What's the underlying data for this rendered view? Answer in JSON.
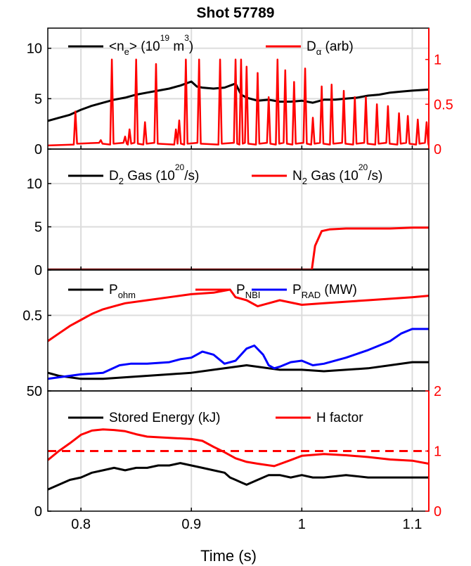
{
  "figure": {
    "title": "Shot 57789",
    "xlabel": "Time (s)"
  },
  "colors": {
    "black": "#000000",
    "red": "#ff0000",
    "blue": "#0000ff",
    "grid": "#dcdcdc"
  },
  "chart_data": [
    {
      "type": "line",
      "panel": 1,
      "x_range": [
        0.77,
        1.115
      ],
      "x_ticks": [
        0.8,
        0.9,
        1.0,
        1.1
      ],
      "ylim": [
        0,
        12
      ],
      "y_ticks": [
        0,
        5,
        10
      ],
      "y_tick_labels": [
        "0",
        "5",
        "10"
      ],
      "y2lim": [
        0,
        1.35
      ],
      "y2_ticks": [
        0,
        0.5,
        1
      ],
      "y2_tick_labels": [
        "0",
        "0.5",
        "1"
      ],
      "legend": {
        "ne": {
          "main": "<n",
          "sub": "e",
          "mid": "> (10",
          "sup": "19",
          "tail": " m",
          "sup2": "3",
          "end": ")"
        },
        "da": {
          "main": "D",
          "sub": "α",
          "tail": " (arb)"
        }
      },
      "series": [
        {
          "key": "ne",
          "axis": "left",
          "color": "#000000",
          "x": [
            0.77,
            0.78,
            0.79,
            0.8,
            0.81,
            0.82,
            0.83,
            0.84,
            0.85,
            0.86,
            0.87,
            0.88,
            0.89,
            0.895,
            0.9,
            0.905,
            0.91,
            0.92,
            0.93,
            0.94,
            0.945,
            0.95,
            0.96,
            0.97,
            0.98,
            0.99,
            1.0,
            1.01,
            1.02,
            1.03,
            1.04,
            1.05,
            1.06,
            1.07,
            1.08,
            1.09,
            1.1,
            1.115
          ],
          "y": [
            2.8,
            3.1,
            3.4,
            3.9,
            4.3,
            4.6,
            4.9,
            5.1,
            5.4,
            5.6,
            5.8,
            6.0,
            6.3,
            6.5,
            6.7,
            6.2,
            6.1,
            6.0,
            6.1,
            6.5,
            5.4,
            5.1,
            4.8,
            4.9,
            4.7,
            4.7,
            4.8,
            4.6,
            4.9,
            4.9,
            5.0,
            5.1,
            5.3,
            5.4,
            5.6,
            5.7,
            5.8,
            5.9
          ]
        },
        {
          "key": "da",
          "axis": "right",
          "color": "#ff0000",
          "baseline": 0.04,
          "spikes": [
            [
              0.795,
              0.42
            ],
            [
              0.818,
              0.1
            ],
            [
              0.828,
              1.0
            ],
            [
              0.84,
              0.14
            ],
            [
              0.844,
              0.22
            ],
            [
              0.85,
              1.0
            ],
            [
              0.858,
              0.3
            ],
            [
              0.868,
              0.95
            ],
            [
              0.886,
              0.22
            ],
            [
              0.889,
              0.32
            ],
            [
              0.895,
              1.0
            ],
            [
              0.907,
              1.0
            ],
            [
              0.926,
              1.0
            ],
            [
              0.94,
              1.0
            ],
            [
              0.945,
              1.0
            ],
            [
              0.95,
              0.92
            ],
            [
              0.96,
              0.85
            ],
            [
              0.97,
              0.58
            ],
            [
              0.978,
              1.0
            ],
            [
              0.985,
              0.88
            ],
            [
              0.993,
              0.75
            ],
            [
              1.003,
              0.9
            ],
            [
              1.01,
              0.35
            ],
            [
              1.018,
              0.7
            ],
            [
              1.027,
              0.72
            ],
            [
              1.038,
              0.65
            ],
            [
              1.048,
              0.58
            ],
            [
              1.058,
              0.58
            ],
            [
              1.068,
              0.5
            ],
            [
              1.078,
              0.48
            ],
            [
              1.088,
              0.4
            ],
            [
              1.096,
              0.37
            ],
            [
              1.105,
              0.33
            ],
            [
              1.113,
              0.3
            ]
          ]
        }
      ]
    },
    {
      "type": "line",
      "panel": 2,
      "x_range": [
        0.77,
        1.115
      ],
      "ylim": [
        0,
        14
      ],
      "y_ticks": [
        0,
        5,
        10
      ],
      "y_tick_labels": [
        "0",
        "5",
        "10"
      ],
      "legend": {
        "d2": {
          "main": "D",
          "sub": "2",
          "mid": " Gas (10",
          "sup": "20",
          "end": "/s)"
        },
        "n2": {
          "main": "N",
          "sub": "2",
          "mid": " Gas (10",
          "sup": "20",
          "end": "/s)"
        }
      },
      "series": [
        {
          "key": "d2",
          "color": "#000000",
          "x": [
            0.77,
            1.115
          ],
          "y": [
            0.05,
            0.05
          ]
        },
        {
          "key": "n2",
          "color": "#ff0000",
          "x": [
            0.77,
            1.009,
            1.012,
            1.018,
            1.025,
            1.04,
            1.06,
            1.08,
            1.1,
            1.115
          ],
          "y": [
            0,
            0,
            2.8,
            4.5,
            4.7,
            4.8,
            4.8,
            4.8,
            4.9,
            4.9
          ]
        }
      ]
    },
    {
      "type": "line",
      "panel": 3,
      "x_range": [
        0.77,
        1.115
      ],
      "ylim": [
        0,
        0.8
      ],
      "y_ticks": [
        0.5
      ],
      "y_tick_labels": [
        "0.5"
      ],
      "legend": {
        "pohm": {
          "main": "P",
          "sub": "ohm"
        },
        "pnbi": {
          "main": "P",
          "sub": "NBI"
        },
        "prad": {
          "main": "P",
          "sub": "RAD",
          "tail": " (MW)"
        }
      },
      "series": [
        {
          "key": "pohm",
          "color": "#000000",
          "x": [
            0.77,
            0.78,
            0.79,
            0.8,
            0.82,
            0.84,
            0.86,
            0.88,
            0.9,
            0.92,
            0.94,
            0.95,
            0.96,
            0.97,
            0.98,
            0.99,
            1.0,
            1.02,
            1.04,
            1.06,
            1.08,
            1.1,
            1.115
          ],
          "y": [
            0.12,
            0.1,
            0.09,
            0.08,
            0.08,
            0.09,
            0.1,
            0.11,
            0.12,
            0.14,
            0.16,
            0.17,
            0.16,
            0.15,
            0.14,
            0.14,
            0.14,
            0.13,
            0.14,
            0.15,
            0.17,
            0.19,
            0.19
          ]
        },
        {
          "key": "pnbi",
          "color": "#ff0000",
          "x": [
            0.77,
            0.78,
            0.79,
            0.8,
            0.81,
            0.82,
            0.83,
            0.84,
            0.86,
            0.88,
            0.9,
            0.92,
            0.935,
            0.94,
            0.95,
            0.96,
            0.97,
            0.98,
            1.0,
            1.02,
            1.04,
            1.06,
            1.08,
            1.1,
            1.115
          ],
          "y": [
            0.33,
            0.38,
            0.43,
            0.47,
            0.51,
            0.54,
            0.56,
            0.58,
            0.6,
            0.62,
            0.64,
            0.65,
            0.67,
            0.62,
            0.6,
            0.56,
            0.58,
            0.6,
            0.57,
            0.58,
            0.59,
            0.6,
            0.61,
            0.62,
            0.63
          ]
        },
        {
          "key": "prad",
          "color": "#0000ff",
          "x": [
            0.77,
            0.78,
            0.79,
            0.8,
            0.82,
            0.835,
            0.845,
            0.86,
            0.88,
            0.89,
            0.9,
            0.91,
            0.92,
            0.93,
            0.94,
            0.95,
            0.957,
            0.965,
            0.97,
            0.975,
            0.98,
            0.99,
            1.0,
            1.01,
            1.02,
            1.04,
            1.06,
            1.08,
            1.09,
            1.1,
            1.115
          ],
          "y": [
            0.08,
            0.09,
            0.1,
            0.11,
            0.12,
            0.17,
            0.18,
            0.18,
            0.19,
            0.21,
            0.22,
            0.26,
            0.24,
            0.18,
            0.2,
            0.28,
            0.3,
            0.24,
            0.17,
            0.15,
            0.16,
            0.19,
            0.2,
            0.17,
            0.18,
            0.22,
            0.27,
            0.33,
            0.38,
            0.41,
            0.41
          ]
        }
      ]
    },
    {
      "type": "line",
      "panel": 4,
      "x_range": [
        0.77,
        1.115
      ],
      "x_ticks": [
        0.8,
        0.9,
        1.0,
        1.1
      ],
      "x_tick_labels": [
        "0.8",
        "0.9",
        "1",
        "1.1"
      ],
      "ylim": [
        0,
        50
      ],
      "y_ticks": [
        0,
        50
      ],
      "y_tick_labels": [
        "0",
        "50"
      ],
      "y2lim": [
        0,
        2
      ],
      "y2_ticks": [
        0,
        1,
        2
      ],
      "y2_tick_labels": [
        "0",
        "1",
        "2"
      ],
      "legend": {
        "we": {
          "main": "Stored Energy (kJ)"
        },
        "h": {
          "main": "H factor"
        }
      },
      "series": [
        {
          "key": "we",
          "axis": "left",
          "color": "#000000",
          "x": [
            0.77,
            0.78,
            0.79,
            0.8,
            0.81,
            0.82,
            0.83,
            0.84,
            0.85,
            0.86,
            0.87,
            0.88,
            0.89,
            0.9,
            0.91,
            0.92,
            0.93,
            0.935,
            0.94,
            0.945,
            0.95,
            0.96,
            0.97,
            0.98,
            0.99,
            1.0,
            1.01,
            1.02,
            1.04,
            1.06,
            1.08,
            1.1,
            1.115
          ],
          "y": [
            9,
            11,
            13,
            14,
            16,
            17,
            18,
            17,
            18,
            18,
            19,
            19,
            20,
            19,
            18,
            17,
            16,
            14,
            13,
            12,
            11,
            13,
            15,
            15,
            14,
            15,
            14,
            14,
            15,
            14,
            14,
            14,
            14
          ]
        },
        {
          "key": "h",
          "axis": "right",
          "color": "#ff0000",
          "x": [
            0.77,
            0.78,
            0.79,
            0.8,
            0.81,
            0.82,
            0.83,
            0.84,
            0.85,
            0.86,
            0.88,
            0.9,
            0.91,
            0.92,
            0.93,
            0.94,
            0.95,
            0.96,
            0.975,
            0.99,
            1.0,
            1.02,
            1.04,
            1.06,
            1.08,
            1.1,
            1.115
          ],
          "y": [
            0.85,
            1.0,
            1.13,
            1.27,
            1.34,
            1.36,
            1.35,
            1.33,
            1.28,
            1.24,
            1.22,
            1.2,
            1.17,
            1.07,
            0.98,
            0.88,
            0.82,
            0.79,
            0.75,
            0.85,
            0.92,
            0.95,
            0.93,
            0.9,
            0.86,
            0.84,
            0.79
          ]
        },
        {
          "key": "h_ref",
          "axis": "right",
          "color": "#ff0000",
          "dashed": true,
          "x": [
            0.77,
            1.115
          ],
          "y": [
            1.0,
            1.0
          ]
        }
      ]
    }
  ]
}
